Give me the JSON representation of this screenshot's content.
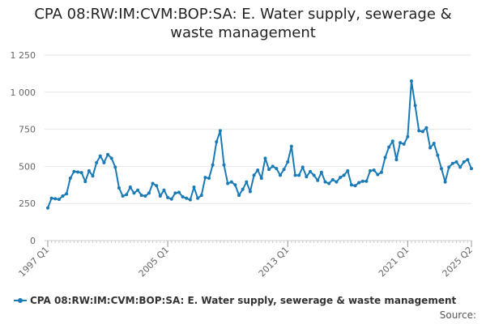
{
  "chart_data": {
    "type": "line",
    "title": "CPA 08:RW:IM:CVM:BOP:SA: E. Water supply, sewerage & waste management",
    "xlabel": "",
    "ylabel": "",
    "ylim": [
      0,
      1250
    ],
    "yticks": [
      0,
      250,
      500,
      750,
      1000,
      1250
    ],
    "ytick_labels": [
      "0",
      "250",
      "500",
      "750",
      "1 000",
      "1 250"
    ],
    "xtick_labels": [
      "1997 Q1",
      "2005 Q1",
      "2013 Q1",
      "2021 Q1",
      "2025 Q2"
    ],
    "grid": "horizontal",
    "legend": "bottom-left",
    "color": "#1a7ab5",
    "series": [
      {
        "name": "CPA 08:RW:IM:CVM:BOP:SA: E. Water supply, sewerage & waste management",
        "start": "1997 Q1",
        "values": [
          220,
          285,
          282,
          278,
          300,
          315,
          420,
          465,
          462,
          458,
          398,
          470,
          435,
          525,
          570,
          525,
          580,
          555,
          495,
          355,
          300,
          310,
          360,
          320,
          340,
          305,
          300,
          320,
          385,
          370,
          300,
          340,
          290,
          280,
          320,
          325,
          295,
          285,
          275,
          360,
          285,
          305,
          425,
          420,
          510,
          665,
          740,
          510,
          385,
          395,
          375,
          305,
          345,
          395,
          330,
          440,
          475,
          420,
          555,
          480,
          500,
          485,
          440,
          480,
          530,
          635,
          440,
          440,
          495,
          430,
          465,
          440,
          405,
          460,
          395,
          385,
          410,
          395,
          425,
          440,
          470,
          375,
          370,
          390,
          400,
          400,
          470,
          475,
          445,
          460,
          560,
          630,
          670,
          545,
          660,
          650,
          700,
          1075,
          910,
          740,
          735,
          760,
          625,
          655,
          575,
          485,
          395,
          495,
          520,
          530,
          495,
          530,
          545,
          485
        ]
      }
    ],
    "source_label": "Source:"
  }
}
